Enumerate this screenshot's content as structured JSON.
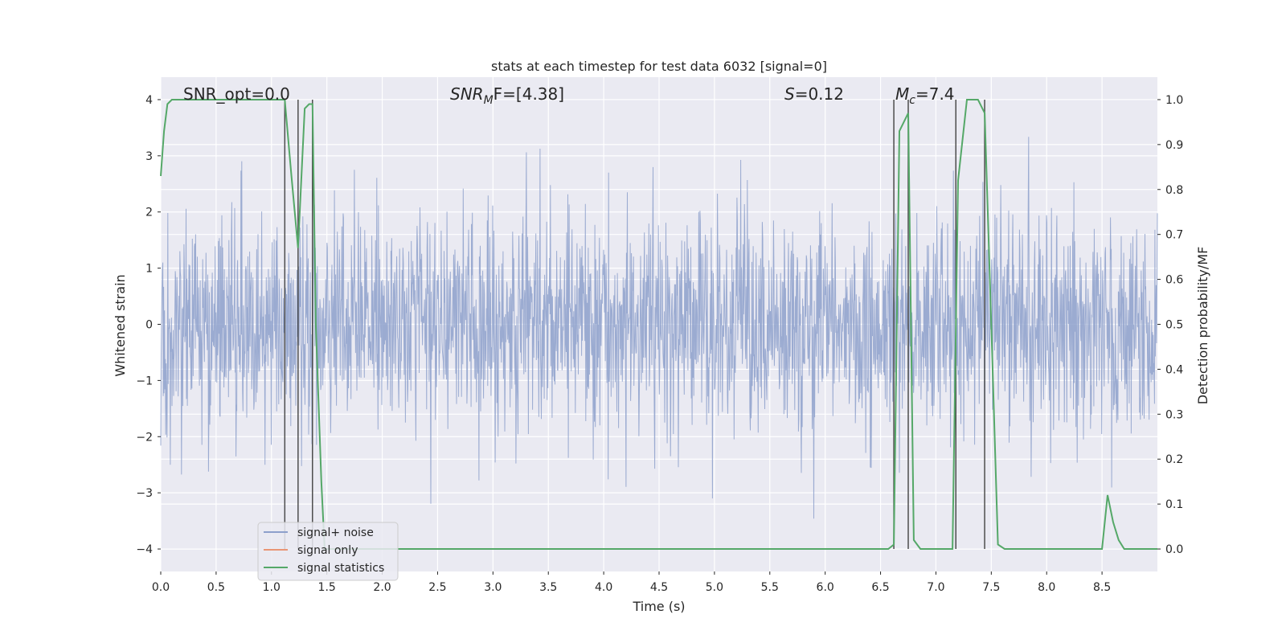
{
  "chart_data": {
    "type": "line",
    "title": "stats at each timestep for test data 6032 [signal=0]",
    "xlabel": "Time (s)",
    "ylabel": "Whitened strain",
    "y2label": "Detection probability/MF",
    "xlim": [
      0.0,
      9.0
    ],
    "ylim": [
      -4.4,
      4.4
    ],
    "y2lim": [
      -0.05,
      1.05
    ],
    "xticks": [
      "0.0",
      "0.5",
      "1.0",
      "1.5",
      "2.0",
      "2.5",
      "3.0",
      "3.5",
      "4.0",
      "4.5",
      "5.0",
      "5.5",
      "6.0",
      "6.5",
      "7.0",
      "7.5",
      "8.0",
      "8.5"
    ],
    "yticks": [
      "−4",
      "−3",
      "−2",
      "−1",
      "0",
      "1",
      "2",
      "3",
      "4"
    ],
    "y2ticks": [
      "0.0",
      "0.1",
      "0.2",
      "0.3",
      "0.4",
      "0.5",
      "0.6",
      "0.7",
      "0.8",
      "0.9",
      "1.0"
    ],
    "grid": true,
    "legend_position": "lower-left",
    "annotations": {
      "snr_opt": "SNR_opt=0.0",
      "snr_mf_main": "SNR",
      "snr_mf_sub": "M",
      "snr_mf_rest": "F=[4.38]",
      "s_main": "S",
      "s_rest": "=0.12",
      "mc_main": "M",
      "mc_sub": "c",
      "mc_rest": "=7.4"
    },
    "series": [
      {
        "name": "signal+ noise",
        "color": "#8da0cb",
        "style": "dense noise trace, amplitude about ±1.6 with spikes to about ±4"
      },
      {
        "name": "signal only",
        "color": "#e99675",
        "values": []
      },
      {
        "name": "signal statistics",
        "color": "#55a868",
        "axis": "right",
        "x": [
          0.0,
          0.03,
          0.06,
          0.1,
          0.2,
          0.4,
          0.6,
          0.8,
          1.0,
          1.12,
          1.18,
          1.24,
          1.3,
          1.34,
          1.37,
          1.4,
          1.45,
          1.48,
          1.52,
          2.0,
          3.0,
          4.0,
          5.0,
          6.0,
          6.5,
          6.57,
          6.62,
          6.67,
          6.75,
          6.8,
          6.86,
          6.95,
          7.1,
          7.15,
          7.2,
          7.28,
          7.38,
          7.44,
          7.5,
          7.56,
          7.62,
          8.0,
          8.45,
          8.5,
          8.55,
          8.6,
          8.65,
          8.7,
          9.0
        ],
        "y": [
          0.83,
          0.93,
          0.99,
          1.0,
          1.0,
          1.0,
          1.0,
          1.0,
          1.0,
          1.0,
          0.83,
          0.67,
          0.98,
          0.99,
          0.99,
          0.5,
          0.15,
          0.0,
          0.0,
          0.0,
          0.0,
          0.0,
          0.0,
          0.0,
          0.0,
          0.0,
          0.01,
          0.93,
          0.97,
          0.02,
          0.0,
          0.0,
          0.0,
          0.0,
          0.82,
          1.0,
          1.0,
          0.97,
          0.5,
          0.01,
          0.0,
          0.0,
          0.0,
          0.0,
          0.12,
          0.06,
          0.02,
          0.0,
          0.0
        ]
      },
      {
        "name": "",
        "color": "#4d4d4d",
        "style": "vertical markers",
        "x": [
          1.12,
          1.24,
          1.37,
          6.62,
          6.75,
          7.18,
          7.44
        ]
      }
    ]
  }
}
